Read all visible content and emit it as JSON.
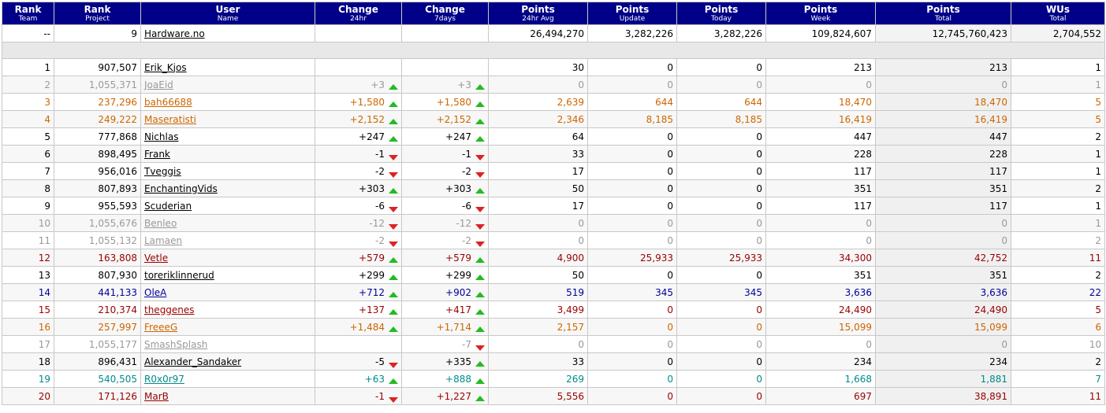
{
  "headers": [
    {
      "key": "rank_team",
      "l1": "Rank",
      "l2": "Team"
    },
    {
      "key": "rank_project",
      "l1": "Rank",
      "l2": "Project"
    },
    {
      "key": "user",
      "l1": "User",
      "l2": "Name"
    },
    {
      "key": "change24",
      "l1": "Change",
      "l2": "24hr"
    },
    {
      "key": "change7",
      "l1": "Change",
      "l2": "7days"
    },
    {
      "key": "pts24avg",
      "l1": "Points",
      "l2": "24hr Avg"
    },
    {
      "key": "ptsupdate",
      "l1": "Points",
      "l2": "Update"
    },
    {
      "key": "ptstoday",
      "l1": "Points",
      "l2": "Today"
    },
    {
      "key": "ptsweek",
      "l1": "Points",
      "l2": "Week"
    },
    {
      "key": "ptstotal",
      "l1": "Points",
      "l2": "Total"
    },
    {
      "key": "wus",
      "l1": "WUs",
      "l2": "Total"
    }
  ],
  "team": {
    "rank_team": "--",
    "rank_project": "9",
    "name": "Hardware.no",
    "change24": "",
    "change7": "",
    "pts24avg": "26,494,270",
    "ptsupdate": "3,282,226",
    "ptstoday": "3,282,226",
    "ptsweek": "109,824,607",
    "ptstotal": "12,745,760,423",
    "wus": "2,704,552"
  },
  "colors": {
    "header_bg": "#000088",
    "black": "#000000",
    "gray": "#999999",
    "orange": "#cc6600",
    "darkred": "#990000",
    "blue": "#000099",
    "teal": "#008b8b",
    "arrow_up": "#22bb22",
    "arrow_down": "#dd2222"
  },
  "rows": [
    {
      "rank": "1",
      "proj": "907,507",
      "name": "Erik_Kjos",
      "c24": "",
      "a24": "",
      "c7": "",
      "a7": "",
      "avg": "30",
      "upd": "0",
      "today": "0",
      "week": "213",
      "total": "213",
      "wus": "1",
      "color": "black"
    },
    {
      "rank": "2",
      "proj": "1,055,371",
      "name": "JoaEid",
      "c24": "+3",
      "a24": "up",
      "c7": "+3",
      "a7": "up",
      "avg": "0",
      "upd": "0",
      "today": "0",
      "week": "0",
      "total": "0",
      "wus": "1",
      "color": "gray"
    },
    {
      "rank": "3",
      "proj": "237,296",
      "name": "bah66688",
      "c24": "+1,580",
      "a24": "up",
      "c7": "+1,580",
      "a7": "up",
      "avg": "2,639",
      "upd": "644",
      "today": "644",
      "week": "18,470",
      "total": "18,470",
      "wus": "5",
      "color": "orange"
    },
    {
      "rank": "4",
      "proj": "249,222",
      "name": "Maseratisti",
      "c24": "+2,152",
      "a24": "up",
      "c7": "+2,152",
      "a7": "up",
      "avg": "2,346",
      "upd": "8,185",
      "today": "8,185",
      "week": "16,419",
      "total": "16,419",
      "wus": "5",
      "color": "orange"
    },
    {
      "rank": "5",
      "proj": "777,868",
      "name": "Nichlas",
      "c24": "+247",
      "a24": "up",
      "c7": "+247",
      "a7": "up",
      "avg": "64",
      "upd": "0",
      "today": "0",
      "week": "447",
      "total": "447",
      "wus": "2",
      "color": "black"
    },
    {
      "rank": "6",
      "proj": "898,495",
      "name": "Frank",
      "c24": "-1",
      "a24": "down",
      "c7": "-1",
      "a7": "down",
      "avg": "33",
      "upd": "0",
      "today": "0",
      "week": "228",
      "total": "228",
      "wus": "1",
      "color": "black"
    },
    {
      "rank": "7",
      "proj": "956,016",
      "name": "Tveggis",
      "c24": "-2",
      "a24": "down",
      "c7": "-2",
      "a7": "down",
      "avg": "17",
      "upd": "0",
      "today": "0",
      "week": "117",
      "total": "117",
      "wus": "1",
      "color": "black"
    },
    {
      "rank": "8",
      "proj": "807,893",
      "name": "EnchantingVids",
      "c24": "+303",
      "a24": "up",
      "c7": "+303",
      "a7": "up",
      "avg": "50",
      "upd": "0",
      "today": "0",
      "week": "351",
      "total": "351",
      "wus": "2",
      "color": "black"
    },
    {
      "rank": "9",
      "proj": "955,593",
      "name": "Scuderian",
      "c24": "-6",
      "a24": "down",
      "c7": "-6",
      "a7": "down",
      "avg": "17",
      "upd": "0",
      "today": "0",
      "week": "117",
      "total": "117",
      "wus": "1",
      "color": "black"
    },
    {
      "rank": "10",
      "proj": "1,055,676",
      "name": "Benleo",
      "c24": "-12",
      "a24": "down",
      "c7": "-12",
      "a7": "down",
      "avg": "0",
      "upd": "0",
      "today": "0",
      "week": "0",
      "total": "0",
      "wus": "1",
      "color": "gray"
    },
    {
      "rank": "11",
      "proj": "1,055,132",
      "name": "Lamaen",
      "c24": "-2",
      "a24": "down",
      "c7": "-2",
      "a7": "down",
      "avg": "0",
      "upd": "0",
      "today": "0",
      "week": "0",
      "total": "0",
      "wus": "2",
      "color": "gray"
    },
    {
      "rank": "12",
      "proj": "163,808",
      "name": "Vetle",
      "c24": "+579",
      "a24": "up",
      "c7": "+579",
      "a7": "up",
      "avg": "4,900",
      "upd": "25,933",
      "today": "25,933",
      "week": "34,300",
      "total": "42,752",
      "wus": "11",
      "color": "darkred"
    },
    {
      "rank": "13",
      "proj": "807,930",
      "name": "toreriklinnerud",
      "c24": "+299",
      "a24": "up",
      "c7": "+299",
      "a7": "up",
      "avg": "50",
      "upd": "0",
      "today": "0",
      "week": "351",
      "total": "351",
      "wus": "2",
      "color": "black"
    },
    {
      "rank": "14",
      "proj": "441,133",
      "name": "OleA",
      "c24": "+712",
      "a24": "up",
      "c7": "+902",
      "a7": "up",
      "avg": "519",
      "upd": "345",
      "today": "345",
      "week": "3,636",
      "total": "3,636",
      "wus": "22",
      "color": "blue"
    },
    {
      "rank": "15",
      "proj": "210,374",
      "name": "theggenes",
      "c24": "+137",
      "a24": "up",
      "c7": "+417",
      "a7": "up",
      "avg": "3,499",
      "upd": "0",
      "today": "0",
      "week": "24,490",
      "total": "24,490",
      "wus": "5",
      "color": "darkred"
    },
    {
      "rank": "16",
      "proj": "257,997",
      "name": "FreeeG",
      "c24": "+1,484",
      "a24": "up",
      "c7": "+1,714",
      "a7": "up",
      "avg": "2,157",
      "upd": "0",
      "today": "0",
      "week": "15,099",
      "total": "15,099",
      "wus": "6",
      "color": "orange"
    },
    {
      "rank": "17",
      "proj": "1,055,177",
      "name": "SmashSplash",
      "c24": "",
      "a24": "",
      "c7": "-7",
      "a7": "down",
      "avg": "0",
      "upd": "0",
      "today": "0",
      "week": "0",
      "total": "0",
      "wus": "10",
      "color": "gray"
    },
    {
      "rank": "18",
      "proj": "896,431",
      "name": "Alexander_Sandaker",
      "c24": "-5",
      "a24": "down",
      "c7": "+335",
      "a7": "up",
      "avg": "33",
      "upd": "0",
      "today": "0",
      "week": "234",
      "total": "234",
      "wus": "2",
      "color": "black"
    },
    {
      "rank": "19",
      "proj": "540,505",
      "name": "R0x0r97",
      "c24": "+63",
      "a24": "up",
      "c7": "+888",
      "a7": "up",
      "avg": "269",
      "upd": "0",
      "today": "0",
      "week": "1,668",
      "total": "1,881",
      "wus": "7",
      "color": "teal"
    },
    {
      "rank": "20",
      "proj": "171,126",
      "name": "MarB",
      "c24": "-1",
      "a24": "down",
      "c7": "+1,227",
      "a7": "up",
      "avg": "5,556",
      "upd": "0",
      "today": "0",
      "week": "697",
      "total": "38,891",
      "wus": "11",
      "color": "darkred"
    }
  ]
}
